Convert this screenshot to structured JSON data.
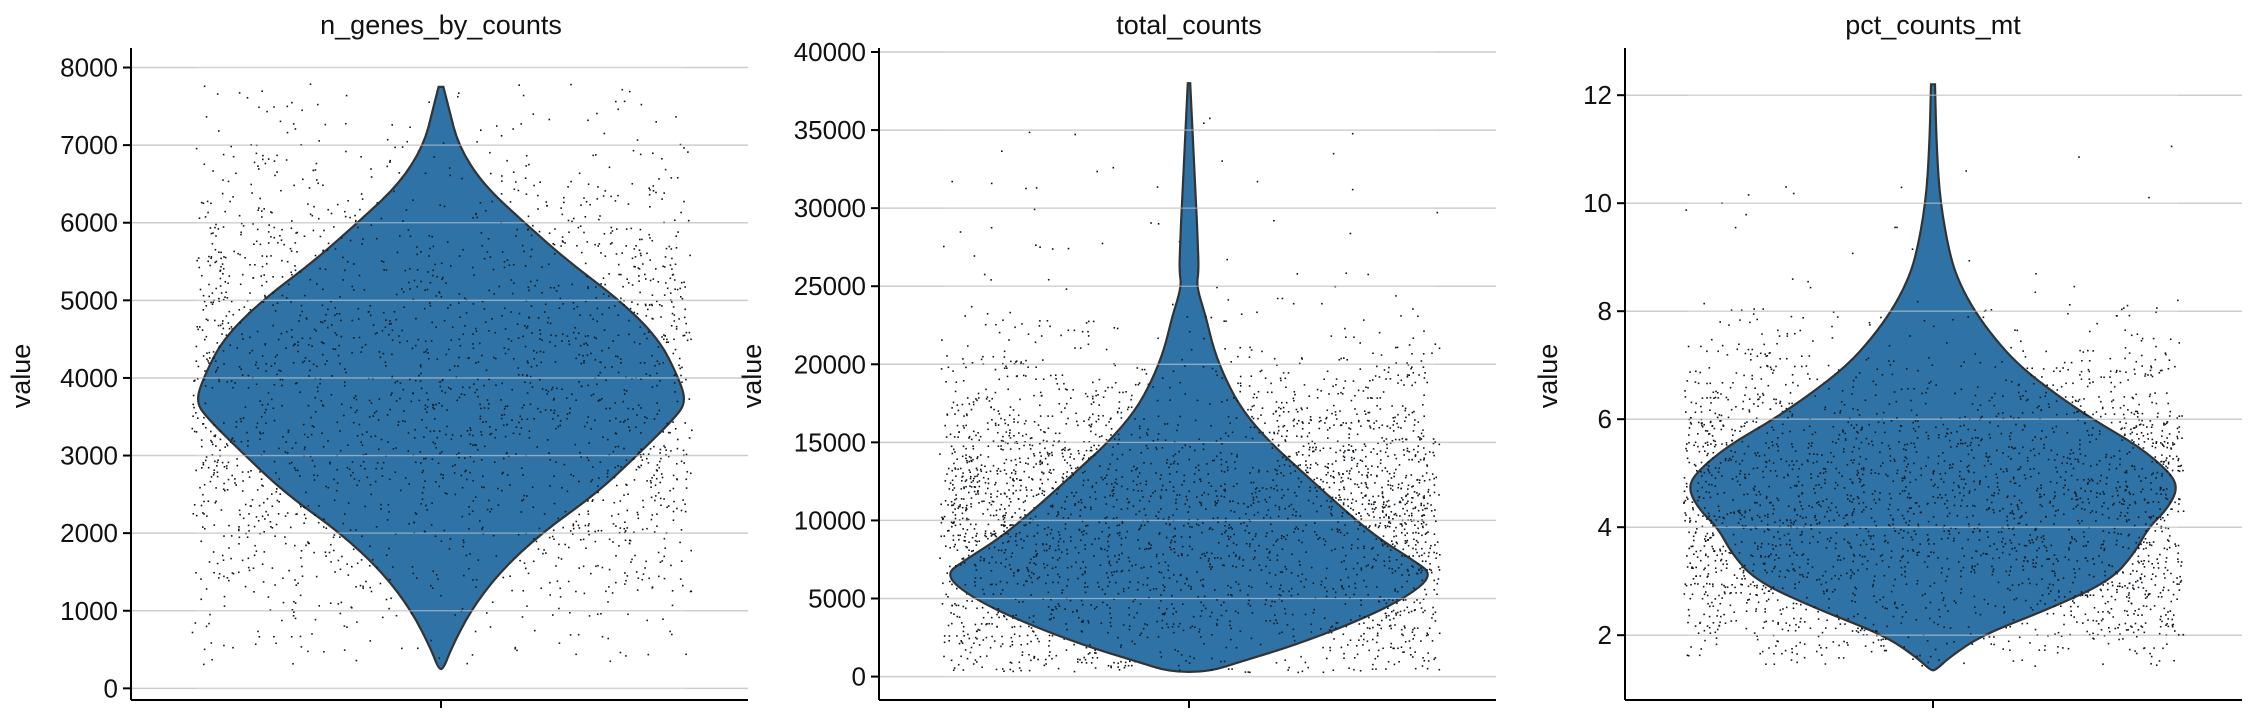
{
  "chart_data": [
    {
      "type": "violin",
      "title": "n_genes_by_counts",
      "ylabel": "value",
      "xlabel": "",
      "ylim": [
        -150,
        8200
      ],
      "yticks": [
        0,
        1000,
        2000,
        3000,
        4000,
        5000,
        6000,
        7000,
        8000
      ],
      "grid": true,
      "color": "#2f73a6",
      "distribution": {
        "y": [
          7750,
          7500,
          7000,
          6500,
          6000,
          5500,
          5000,
          4500,
          4000,
          3700,
          3500,
          3000,
          2500,
          2000,
          1500,
          1000,
          500,
          250
        ],
        "density": [
          0.01,
          0.03,
          0.07,
          0.17,
          0.34,
          0.52,
          0.73,
          0.89,
          0.97,
          1.0,
          0.96,
          0.8,
          0.63,
          0.41,
          0.24,
          0.12,
          0.04,
          0.01
        ]
      },
      "points": {
        "n": 1800,
        "min": 300,
        "max": 7800,
        "mean": 3800,
        "sd": 1550
      }
    },
    {
      "type": "violin",
      "title": "total_counts",
      "ylabel": "value",
      "xlabel": "",
      "ylim": [
        -1500,
        40000
      ],
      "yticks": [
        0,
        5000,
        10000,
        15000,
        20000,
        25000,
        30000,
        35000,
        40000
      ],
      "grid": true,
      "color": "#2f73a6",
      "distribution": {
        "y": [
          38000,
          33000,
          30000,
          28000,
          26000,
          25000,
          23000,
          21000,
          19000,
          17000,
          15000,
          13000,
          11000,
          9000,
          7500,
          6500,
          5000,
          3500,
          2000,
          1000,
          300
        ],
        "density": [
          0.005,
          0.02,
          0.03,
          0.035,
          0.04,
          0.03,
          0.07,
          0.1,
          0.15,
          0.22,
          0.33,
          0.47,
          0.61,
          0.76,
          0.91,
          1.0,
          0.88,
          0.68,
          0.43,
          0.22,
          0.08
        ]
      },
      "points": {
        "n": 2300,
        "min": 300,
        "max": 38000,
        "mean": 9500,
        "sd": 5500
      }
    },
    {
      "type": "violin",
      "title": "pct_counts_mt",
      "ylabel": "value",
      "xlabel": "",
      "ylim": [
        0.8,
        12.8
      ],
      "yticks": [
        2,
        4,
        6,
        8,
        10,
        12
      ],
      "grid": true,
      "color": "#2f73a6",
      "distribution": {
        "y": [
          12.2,
          11.0,
          10.0,
          9.0,
          8.5,
          8.0,
          7.5,
          7.0,
          6.5,
          6.0,
          5.5,
          5.0,
          4.7,
          4.3,
          4.0,
          3.5,
          3.0,
          2.5,
          2.0,
          1.6,
          1.35
        ],
        "density": [
          0.008,
          0.015,
          0.03,
          0.07,
          0.11,
          0.17,
          0.25,
          0.35,
          0.49,
          0.65,
          0.84,
          0.97,
          1.0,
          0.95,
          0.88,
          0.82,
          0.72,
          0.48,
          0.2,
          0.07,
          0.01
        ]
      },
      "points": {
        "n": 2300,
        "min": 1.4,
        "max": 12.2,
        "mean": 4.4,
        "sd": 1.45
      }
    }
  ]
}
